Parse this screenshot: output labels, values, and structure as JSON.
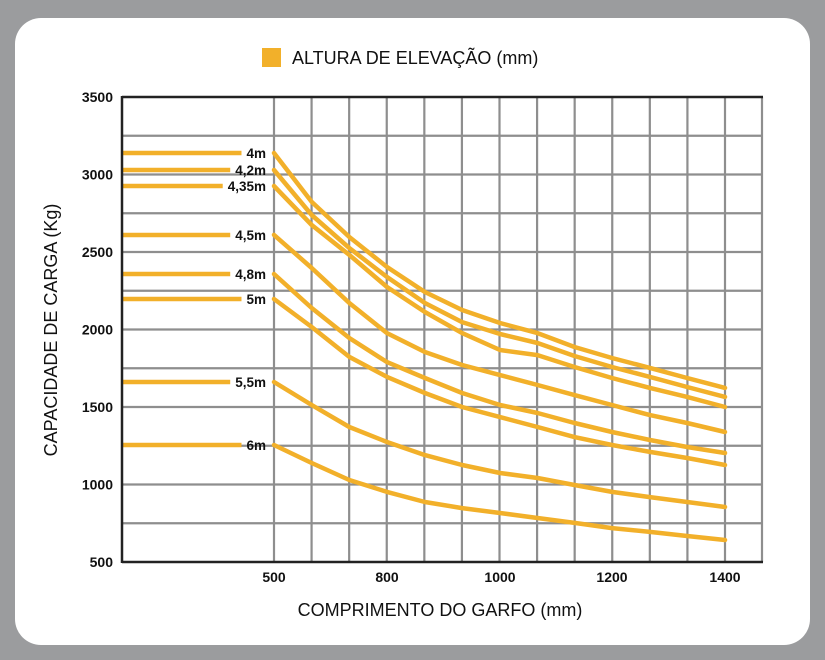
{
  "chart_data": {
    "type": "line",
    "title": "",
    "legend": {
      "label": "ALTURA DE ELEVAÇÃO (mm)",
      "placement": "top-center"
    },
    "xlabel": "COMPRIMENTO DO GARFO (mm)",
    "ylabel": "CAPACIDADE DE CARGA (Kg)",
    "x_ticks": [
      500,
      800,
      1000,
      1200,
      1400
    ],
    "y_ticks": [
      500,
      1000,
      1500,
      2000,
      2500,
      3000,
      3500
    ],
    "ylim": [
      500,
      3500
    ],
    "grid": true,
    "color": "#f2b02a",
    "x": [
      500,
      600,
      700,
      800,
      867,
      933,
      1000,
      1067,
      1133,
      1200,
      1267,
      1333,
      1400
    ],
    "series": [
      {
        "name": "4m",
        "values": [
          3139,
          2823,
          2597,
          2403,
          2242,
          2126,
          2042,
          1977,
          1887,
          1816,
          1752,
          1687,
          1623
        ]
      },
      {
        "name": "4,2m",
        "values": [
          3029,
          2739,
          2526,
          2339,
          2171,
          2048,
          1971,
          1913,
          1829,
          1758,
          1694,
          1629,
          1565
        ]
      },
      {
        "name": "4,35m",
        "values": [
          2926,
          2674,
          2481,
          2274,
          2113,
          1977,
          1868,
          1835,
          1758,
          1687,
          1623,
          1565,
          1500
        ]
      },
      {
        "name": "4,5m",
        "values": [
          2610,
          2397,
          2171,
          1977,
          1855,
          1771,
          1706,
          1642,
          1577,
          1513,
          1448,
          1397,
          1339
        ]
      },
      {
        "name": "4,8m",
        "values": [
          2358,
          2139,
          1945,
          1790,
          1687,
          1590,
          1513,
          1461,
          1397,
          1339,
          1287,
          1242,
          1203
        ]
      },
      {
        "name": "5m",
        "values": [
          2197,
          2016,
          1823,
          1694,
          1590,
          1500,
          1435,
          1371,
          1306,
          1255,
          1210,
          1171,
          1126
        ]
      },
      {
        "name": "5,5m",
        "values": [
          1661,
          1513,
          1371,
          1274,
          1190,
          1126,
          1074,
          1042,
          997,
          952,
          919,
          887,
          855
        ]
      },
      {
        "name": "6m",
        "values": [
          1255,
          1139,
          1029,
          952,
          887,
          848,
          816,
          784,
          752,
          719,
          694,
          668,
          642
        ]
      }
    ]
  }
}
